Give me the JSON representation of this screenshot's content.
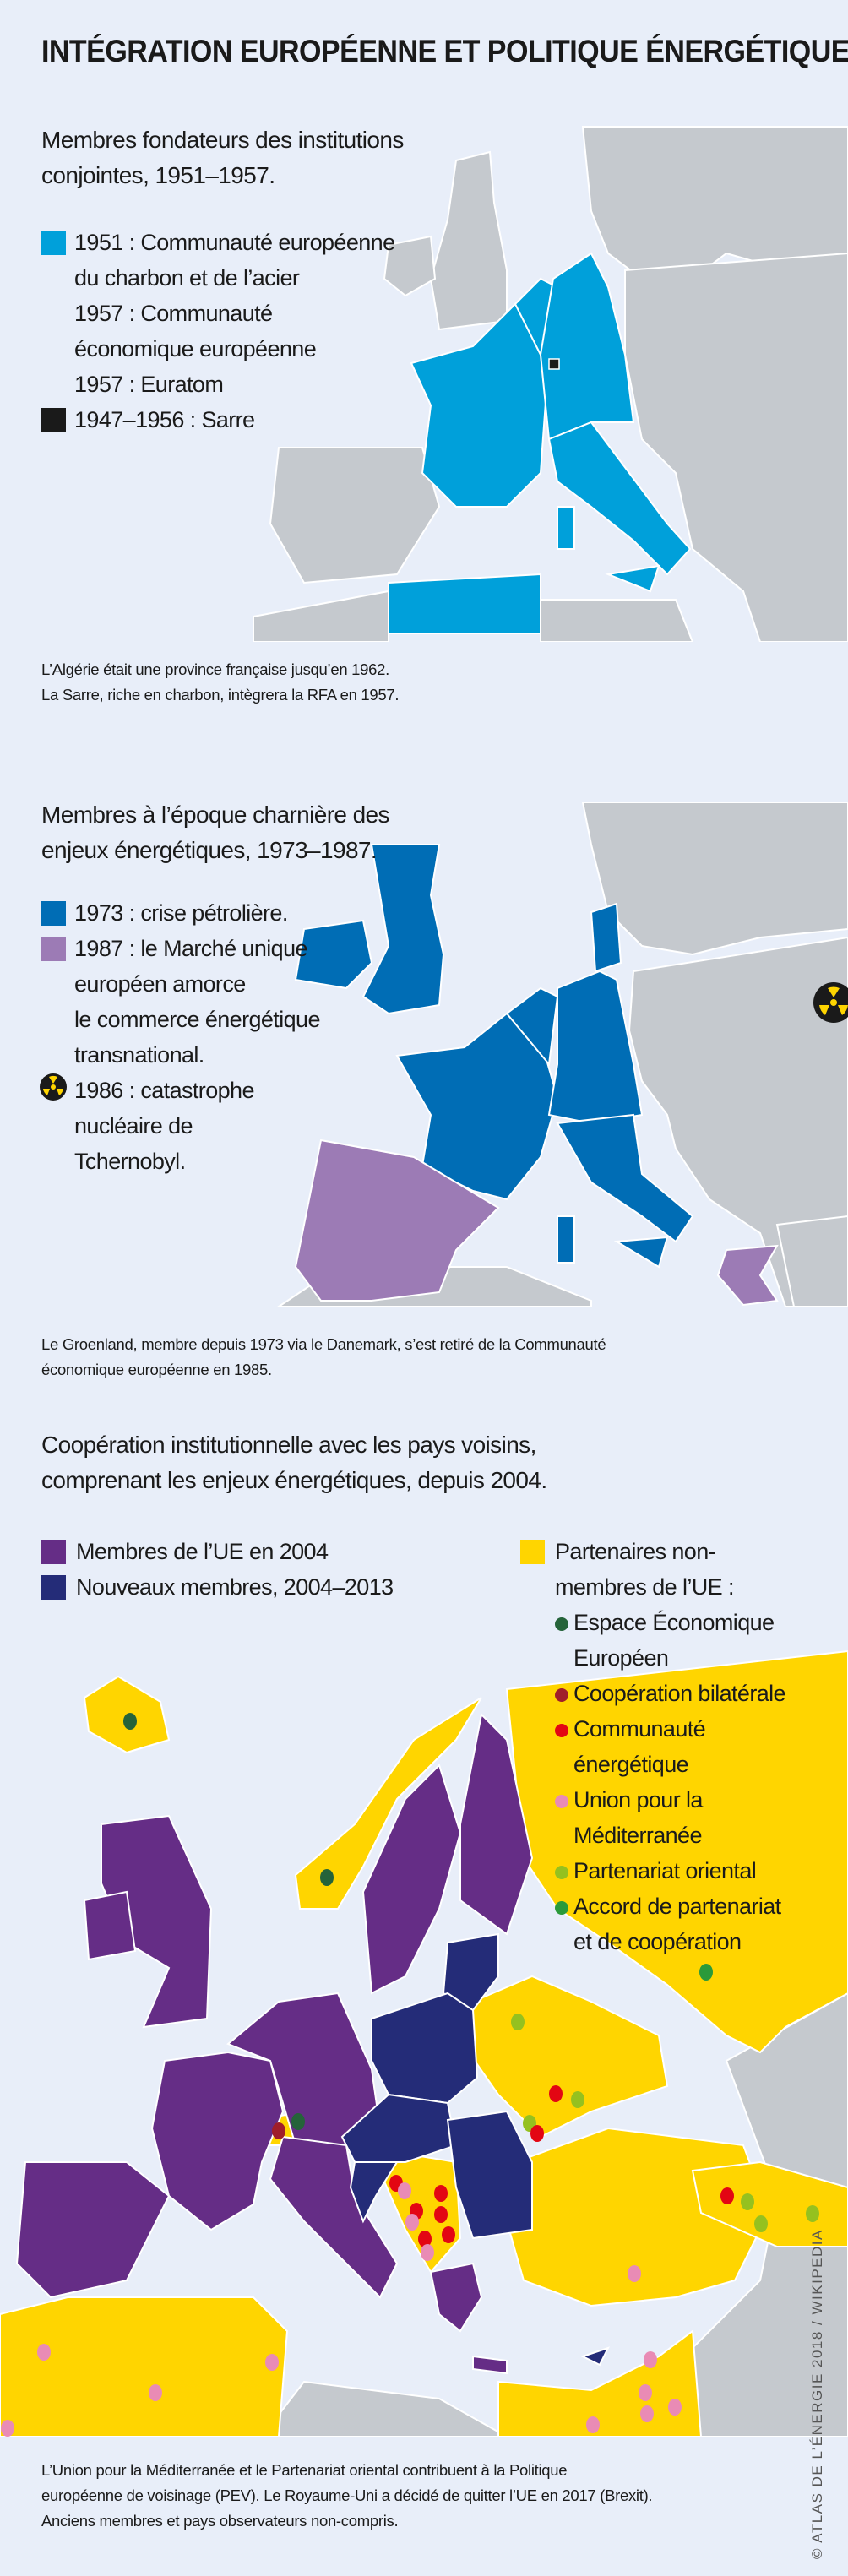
{
  "title": "INTÉGRATION EUROPÉENNE ET POLITIQUE ÉNERGÉTIQUE",
  "colors": {
    "background": "#e8eef9",
    "land": "#c5c9ce",
    "ecsc": "#00a0da",
    "sarre": "#1a1a1a",
    "blue1973": "#006db5",
    "purple1987": "#9c7bb5",
    "eu2004": "#652d86",
    "new_members": "#242c78",
    "partners": "#ffd500"
  },
  "section1": {
    "heading": [
      "Membres fondateurs des institutions",
      "conjointes, 1951–1957."
    ],
    "legend": [
      {
        "color": "#00a0da",
        "lines": [
          "1951 : Communauté européenne",
          "du charbon et de l’acier",
          "1957 : Communauté",
          "économique européenne",
          "1957 : Euratom"
        ]
      },
      {
        "color": "#1a1a1a",
        "lines": [
          "1947–1956 : Sarre"
        ]
      }
    ],
    "note": [
      "L’Algérie était une province française jusqu’en 1962.",
      "La Sarre, riche en charbon, intègrera la RFA en 1957."
    ]
  },
  "section2": {
    "heading": [
      "Membres à l’époque charnière des",
      "enjeux énergétiques, 1973–1987."
    ],
    "legend": [
      {
        "color": "#006db5",
        "lines": [
          "1973 : crise pétrolière."
        ]
      },
      {
        "color": "#9c7bb5",
        "lines": [
          "1987 : le Marché unique",
          "européen amorce",
          "le commerce énergétique",
          "transnational."
        ]
      },
      {
        "icon": "radiation-icon",
        "lines": [
          "1986 : catastrophe",
          "nucléaire de",
          "Tchernobyl."
        ]
      }
    ],
    "note": [
      "Le Groenland, membre depuis 1973 via le Danemark, s’est retiré de la Communauté",
      "économique européenne en 1985."
    ]
  },
  "section3": {
    "heading": [
      "Coopération institutionnelle avec les pays voisins,",
      "comprenant les enjeux énergétiques, depuis 2004."
    ],
    "legend_left": [
      {
        "color": "#652d86",
        "label": "Membres de l’UE en 2004"
      },
      {
        "color": "#242c78",
        "label": "Nouveaux membres, 2004–2013"
      }
    ],
    "legend_right": {
      "color": "#ffd500",
      "lines": [
        "Partenaires non-",
        "membres de l’UE :"
      ],
      "items": [
        {
          "color": "#25633a",
          "lines": [
            "Espace Économique",
            "Européen"
          ]
        },
        {
          "color": "#a01e2a",
          "lines": [
            "Coopération bilatérale"
          ]
        },
        {
          "color": "#e30613",
          "lines": [
            "Communauté",
            "énergétique"
          ]
        },
        {
          "color": "#e98bb5",
          "lines": [
            "Union pour la",
            "Méditerranée"
          ]
        },
        {
          "color": "#95c11f",
          "lines": [
            "Partenariat oriental"
          ]
        },
        {
          "color": "#2a9a3a",
          "lines": [
            "Accord de partenariat",
            "et de coopération"
          ]
        }
      ]
    },
    "note": [
      "L’Union pour la Méditerranée et le Partenariat oriental contribuent à la Politique",
      "européenne de voisinage (PEV). Le Royaume-Uni a décidé de quitter l’UE en 2017 (Brexit).",
      "Anciens membres et pays observateurs non-compris."
    ]
  },
  "credit": "© ATLAS DE L’ÉNERGIE 2018 / WIKIPEDIA"
}
